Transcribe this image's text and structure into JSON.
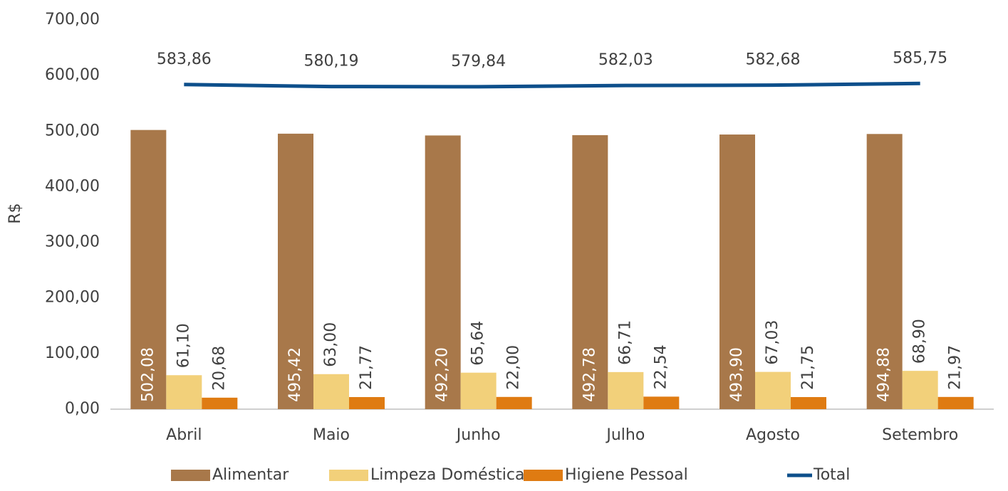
{
  "chart_data": {
    "type": "bar",
    "categories": [
      "Abril",
      "Maio",
      "Junho",
      "Julho",
      "Agosto",
      "Setembro"
    ],
    "y_label": "R$",
    "ylim": [
      0,
      700
    ],
    "yticks": [
      {
        "value": 0,
        "label": "0,00"
      },
      {
        "value": 100,
        "label": "100,00"
      },
      {
        "value": 200,
        "label": "200,00"
      },
      {
        "value": 300,
        "label": "300,00"
      },
      {
        "value": 400,
        "label": "400,00"
      },
      {
        "value": 500,
        "label": "500,00"
      },
      {
        "value": 600,
        "label": "600,00"
      },
      {
        "value": 700,
        "label": "700,00"
      }
    ],
    "legend": "bottom",
    "series": [
      {
        "name": "Alimentar",
        "color": "#a8784a",
        "values": [
          502.08,
          495.42,
          492.2,
          492.78,
          493.9,
          494.88
        ],
        "value_labels": [
          "502,08",
          "495,42",
          "492,20",
          "492,78",
          "493,90",
          "494,88"
        ]
      },
      {
        "name": "Limpeza Doméstica",
        "color": "#f2d07a",
        "values": [
          61.1,
          63.0,
          65.64,
          66.71,
          67.03,
          68.9
        ],
        "value_labels": [
          "61,10",
          "63,00",
          "65,64",
          "66,71",
          "67,03",
          "68,90"
        ]
      },
      {
        "name": "Higiene Pessoal",
        "color": "#df7b12",
        "values": [
          20.68,
          21.77,
          22.0,
          22.54,
          21.75,
          21.97
        ],
        "value_labels": [
          "20,68",
          "21,77",
          "22,00",
          "22,54",
          "21,75",
          "21,97"
        ]
      },
      {
        "name": "Total",
        "type": "line",
        "color": "#0d4f8b",
        "values": [
          583.86,
          580.19,
          579.84,
          582.03,
          582.68,
          585.75
        ],
        "value_labels": [
          "583,86",
          "580,19",
          "579,84",
          "582,03",
          "582,68",
          "585,75"
        ]
      }
    ]
  }
}
